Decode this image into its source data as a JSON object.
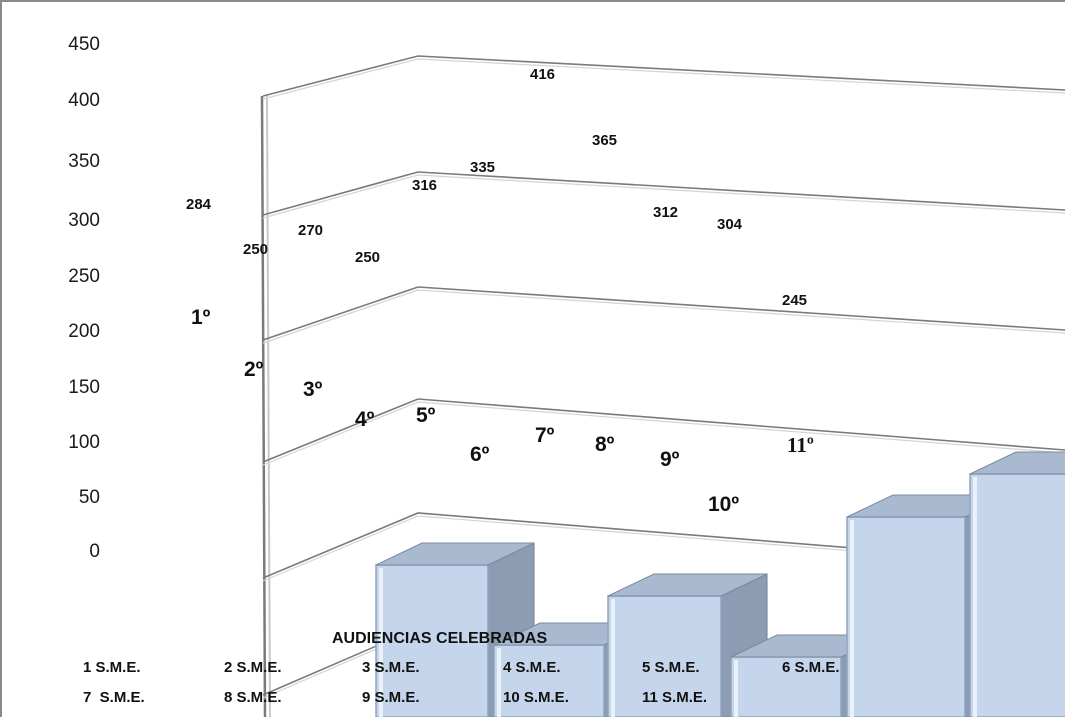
{
  "chart_data": {
    "type": "bar",
    "title": "",
    "xlabel": "",
    "ylabel": "",
    "ylim": [
      0,
      450
    ],
    "y_ticks": [
      "450",
      "400",
      "350",
      "300",
      "250",
      "200",
      "150",
      "100",
      "50",
      "0"
    ],
    "categories": [
      "1º",
      "2º",
      "3º",
      "4º",
      "5º",
      "6º",
      "7º",
      "8º",
      "9º",
      "10º",
      "11º"
    ],
    "values": [
      284,
      250,
      270,
      250,
      316,
      335,
      416,
      365,
      312,
      304,
      245
    ],
    "value_labels": [
      "284",
      "250",
      "270",
      "250",
      "316",
      "335",
      "416",
      "365",
      "312",
      "304",
      "245"
    ],
    "visible_bar_heights": [
      152,
      72,
      121,
      60,
      200,
      243
    ],
    "bar_color": "#c5d6ec",
    "bar_side_color": "#8c9cb2",
    "bar_top_color": "#a9b9cf",
    "legend": {
      "title": "AUDIENCIAS CELEBRADAS",
      "placement": "bottom",
      "entries": [
        "1 S.M.E.",
        "2 S.M.E.",
        "3 S.M.E.",
        "4 S.M.E.",
        "5 S.M.E.",
        "6 S.M.E.",
        "7  S.M.E.",
        "8 S.M.E.",
        "9 S.M.E.",
        "10 S.M.E.",
        "11 S.M.E."
      ]
    },
    "grid": true,
    "three_d": true
  }
}
